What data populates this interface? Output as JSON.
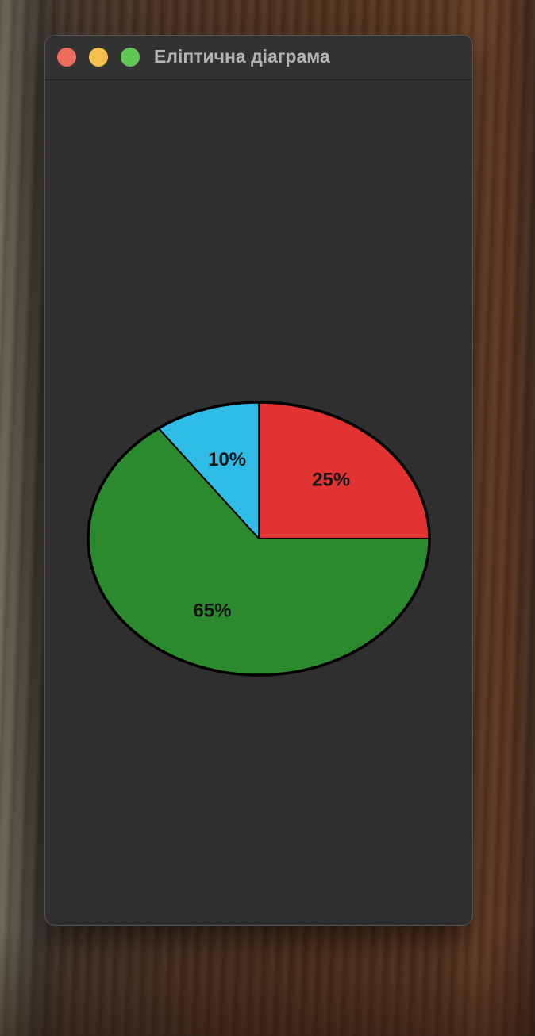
{
  "window": {
    "title": "Еліптична діаграма",
    "buttons": {
      "close": "close",
      "minimize": "minimize",
      "maximize": "maximize"
    }
  },
  "colors": {
    "window_bg": "#2f2f2f",
    "outline": "#000000",
    "label_text": "#151515"
  },
  "chart_data": {
    "type": "pie",
    "shape": "ellipse",
    "start": "east, counter-clockwise",
    "slices": [
      {
        "value": 25,
        "label": "25%",
        "color": "#e23232"
      },
      {
        "value": 10,
        "label": "10%",
        "color": "#2fbde8"
      },
      {
        "value": 65,
        "label": "65%",
        "color": "#2c8a2e"
      }
    ]
  }
}
